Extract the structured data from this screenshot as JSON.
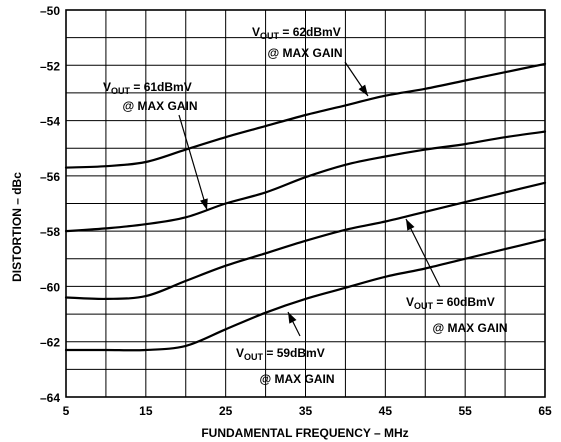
{
  "chart_data": {
    "type": "line",
    "title": "",
    "xlabel": "FUNDAMENTAL FREQUENCY – MHz",
    "ylabel": "DISTORTION – dBc",
    "xlim": [
      5,
      65
    ],
    "ylim": [
      -64,
      -50
    ],
    "xticks": [
      5,
      15,
      25,
      35,
      45,
      55,
      65
    ],
    "yticks": [
      -50,
      -52,
      -54,
      -56,
      -58,
      -60,
      -62,
      -64
    ],
    "xtick_labels": [
      "5",
      "15",
      "25",
      "35",
      "45",
      "55",
      "65"
    ],
    "ytick_labels": [
      "–50",
      "–52",
      "–54",
      "–56",
      "–58",
      "–60",
      "–62",
      "–64"
    ],
    "grid": true,
    "legend": "none",
    "series": [
      {
        "x": [
          5,
          10,
          15,
          20,
          25,
          30,
          35,
          40,
          45,
          50,
          55,
          60,
          65
        ],
        "values": [
          -55.7,
          -55.65,
          -55.5,
          -55.05,
          -54.6,
          -54.2,
          -53.8,
          -53.45,
          -53.1,
          -52.85,
          -52.55,
          -52.25,
          -51.95
        ]
      },
      {
        "x": [
          5,
          10,
          15,
          20,
          25,
          30,
          35,
          40,
          45,
          50,
          55,
          60,
          65
        ],
        "values": [
          -58.0,
          -57.9,
          -57.75,
          -57.5,
          -57.0,
          -56.6,
          -56.05,
          -55.6,
          -55.3,
          -55.05,
          -54.85,
          -54.6,
          -54.4
        ]
      },
      {
        "x": [
          5,
          10,
          15,
          20,
          25,
          30,
          35,
          40,
          45,
          50,
          55,
          60,
          65
        ],
        "values": [
          -60.4,
          -60.45,
          -60.35,
          -59.8,
          -59.25,
          -58.8,
          -58.35,
          -57.95,
          -57.65,
          -57.3,
          -56.95,
          -56.6,
          -56.25
        ]
      },
      {
        "x": [
          5,
          10,
          15,
          20,
          25,
          30,
          35,
          40,
          45,
          50,
          55,
          60,
          65
        ],
        "values": [
          -62.3,
          -62.3,
          -62.3,
          -62.15,
          -61.55,
          -60.95,
          -60.45,
          -60.05,
          -59.65,
          -59.35,
          -59.0,
          -58.65,
          -58.3
        ]
      }
    ],
    "annotations": [
      {
        "main": "V",
        "sub": "OUT",
        "rest": " = 62dBmV",
        "line2": "@ MAX GAIN"
      },
      {
        "main": "V",
        "sub": "OUT",
        "rest": " = 61dBmV",
        "line2": "@ MAX GAIN"
      },
      {
        "main": "V",
        "sub": "OUT",
        "rest": " = 60dBmV",
        "line2": "@ MAX GAIN"
      },
      {
        "main": "V",
        "sub": "OUT",
        "rest": " = 59dBmV",
        "line2": "@ MAX GAIN"
      }
    ]
  }
}
